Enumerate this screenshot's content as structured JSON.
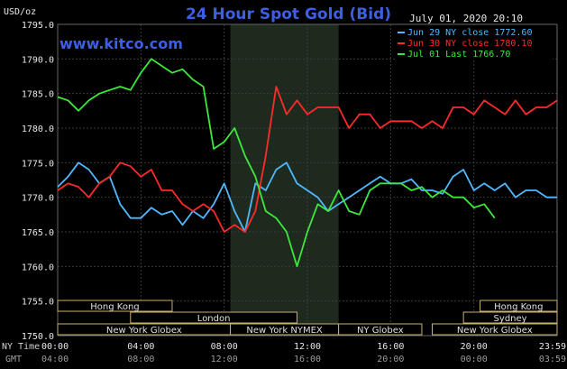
{
  "chart_data": {
    "type": "line",
    "title": "24 Hour Spot Gold (Bid)",
    "watermark": "www.kitco.com",
    "timestamp": "July 01, 2020 20:10",
    "ylabel": "USD/oz",
    "ylim": [
      1750,
      1795
    ],
    "yticks": [
      "1795.0",
      "1790.0",
      "1785.0",
      "1780.0",
      "1775.0",
      "1770.0",
      "1765.0",
      "1760.0",
      "1755.0",
      "1750.0"
    ],
    "xlim": [
      0,
      24
    ],
    "xticks_ny": [
      "00:00",
      "04:00",
      "08:00",
      "12:00",
      "16:00",
      "20:00",
      "23:59"
    ],
    "xticks_gmt": [
      "04:00",
      "08:00",
      "12:00",
      "16:00",
      "20:00",
      "00:00",
      "03:59"
    ],
    "x_row_labels": {
      "ny": "NY Time",
      "gmt": "GMT"
    },
    "grid": true,
    "legend_position": "top-right",
    "highlight_band": [
      8.3,
      13.5
    ],
    "series": [
      {
        "name": "Jun 29 NY close 1772.60",
        "color": "#4fb8ff",
        "x": [
          0,
          0.5,
          1,
          1.5,
          2,
          2.5,
          3,
          3.5,
          4,
          4.5,
          5,
          5.5,
          6,
          6.5,
          7,
          7.5,
          8,
          8.5,
          9,
          9.5,
          10,
          10.5,
          11,
          11.5,
          12,
          12.5,
          13,
          13.5,
          14,
          14.5,
          15,
          15.5,
          16,
          16.5,
          17,
          17.5,
          18,
          18.5,
          19,
          19.5,
          20,
          20.5,
          21,
          21.5,
          22,
          22.5,
          23,
          23.5,
          24
        ],
        "y": [
          1771.5,
          1773,
          1775,
          1774,
          1772,
          1773,
          1769,
          1767,
          1767,
          1768.5,
          1767.5,
          1768,
          1766,
          1768,
          1767,
          1769,
          1772,
          1768,
          1765,
          1772,
          1771,
          1774,
          1775,
          1772,
          1771,
          1770,
          1768,
          1769,
          1770,
          1771,
          1772,
          1773,
          1772,
          1772,
          1772.6,
          1771,
          1771,
          1770.5,
          1773,
          1774,
          1771,
          1772,
          1771,
          1772,
          1770,
          1771,
          1771,
          1770,
          1770
        ]
      },
      {
        "name": "Jun 30 NY close 1780.10",
        "color": "#ff2a2a",
        "x": [
          0,
          0.5,
          1,
          1.5,
          2,
          2.5,
          3,
          3.5,
          4,
          4.5,
          5,
          5.5,
          6,
          6.5,
          7,
          7.5,
          8,
          8.5,
          9,
          9.5,
          10,
          10.5,
          11,
          11.5,
          12,
          12.5,
          13,
          13.5,
          14,
          14.5,
          15,
          15.5,
          16,
          16.5,
          17,
          17.5,
          18,
          18.5,
          19,
          19.5,
          20,
          20.5,
          21,
          21.5,
          22,
          22.5,
          23,
          23.5,
          24
        ],
        "y": [
          1771,
          1772,
          1771.5,
          1770,
          1772,
          1773,
          1775,
          1774.5,
          1773,
          1774,
          1771,
          1771,
          1769,
          1768,
          1769,
          1768,
          1765,
          1766,
          1765,
          1768,
          1776,
          1786,
          1782,
          1784,
          1782,
          1783,
          1783,
          1783,
          1780,
          1782,
          1782,
          1780,
          1781,
          1781,
          1781,
          1780,
          1781,
          1780,
          1783,
          1783,
          1782,
          1784,
          1783,
          1782,
          1784,
          1782,
          1783,
          1783,
          1784
        ]
      },
      {
        "name": "Jul 01 Last 1766.70",
        "color": "#3be83b",
        "x": [
          0,
          0.5,
          1,
          1.5,
          2,
          2.5,
          3,
          3.5,
          4,
          4.5,
          5,
          5.5,
          6,
          6.5,
          7,
          7.5,
          8,
          8.5,
          9,
          9.5,
          10,
          10.5,
          11,
          11.5,
          12,
          12.5,
          13,
          13.5,
          14,
          14.5,
          15,
          15.5,
          16,
          16.5,
          17,
          17.5,
          18,
          18.5,
          19,
          19.5,
          20,
          20.5,
          21
        ],
        "y": [
          1784.5,
          1784,
          1782.5,
          1784,
          1785,
          1785.5,
          1786,
          1785.5,
          1788,
          1790,
          1789,
          1788,
          1788.5,
          1787,
          1786,
          1777,
          1778,
          1780,
          1776,
          1773,
          1768,
          1767,
          1765,
          1760,
          1765,
          1769,
          1768,
          1771,
          1768,
          1767.5,
          1771,
          1772,
          1772,
          1772,
          1771,
          1771.5,
          1770,
          1771,
          1770,
          1770,
          1768.5,
          1769,
          1767
        ]
      }
    ],
    "market_bands": [
      {
        "label": "Hong Kong",
        "start": 0,
        "end": 5.5,
        "row": 0
      },
      {
        "label": "Hong Kong",
        "start": 20.3,
        "end": 24,
        "row": 0
      },
      {
        "label": "London",
        "start": 3.5,
        "end": 11.5,
        "row": 1
      },
      {
        "label": "Sydney",
        "start": 19.5,
        "end": 24,
        "row": 2
      },
      {
        "label": "New York Globex",
        "start": 0,
        "end": 8.3,
        "row": 3
      },
      {
        "label": "New York NYMEX",
        "start": 8.3,
        "end": 13.5,
        "row": 3
      },
      {
        "label": "NY Globex",
        "start": 13.5,
        "end": 17.5,
        "row": 3
      },
      {
        "label": "New York Globex",
        "start": 18,
        "end": 24,
        "row": 3
      }
    ]
  }
}
